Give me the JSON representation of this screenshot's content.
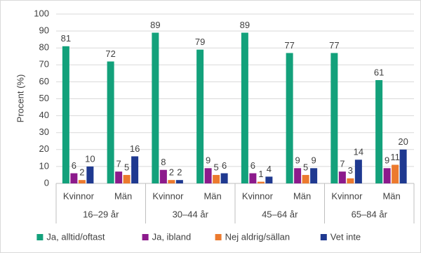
{
  "chart_data": {
    "type": "bar",
    "y_label": "Procent (%)",
    "categories": [
      "Kvinnor",
      "Män",
      "Kvinnor",
      "Män",
      "Kvinnor",
      "Män",
      "Kvinnor",
      "Män"
    ],
    "groups": [
      "16–29 år",
      "30–44 år",
      "45–64 år",
      "65–84 år"
    ],
    "series": [
      {
        "name": "Ja, alltid/oftast",
        "color": "#13a17b",
        "values": [
          81,
          72,
          89,
          79,
          89,
          77,
          77,
          61
        ]
      },
      {
        "name": "Ja, ibland",
        "color": "#8c1a8c",
        "values": [
          6,
          7,
          8,
          9,
          6,
          9,
          7,
          9
        ]
      },
      {
        "name": "Nej aldrig/sällan",
        "color": "#ec7a2e",
        "values": [
          2,
          5,
          2,
          5,
          1,
          5,
          3,
          11
        ]
      },
      {
        "name": "Vet inte",
        "color": "#1f3990",
        "values": [
          10,
          16,
          2,
          6,
          4,
          9,
          14,
          20
        ]
      }
    ],
    "ylim": [
      0,
      100
    ],
    "yticks": [
      0,
      10,
      20,
      30,
      40,
      50,
      60,
      70,
      80,
      90,
      100
    ],
    "grid": true,
    "legend": "bottom"
  }
}
